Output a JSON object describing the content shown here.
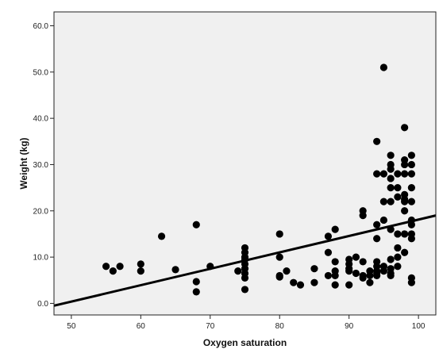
{
  "chart_data": {
    "type": "scatter",
    "title": "",
    "xlabel": "Oxygen saturation",
    "ylabel": "Weight (kg)",
    "xlim": [
      47.5,
      102.5
    ],
    "ylim": [
      -2.5,
      63
    ],
    "x_ticks": [
      50,
      60,
      70,
      80,
      90,
      100
    ],
    "y_ticks": [
      0.0,
      10.0,
      20.0,
      30.0,
      40.0,
      50.0,
      60.0
    ],
    "x_tick_labels": [
      "50",
      "60",
      "70",
      "80",
      "90",
      "100"
    ],
    "y_tick_labels": [
      "0.0",
      "10.0",
      "20.0",
      "30.0",
      "40.0",
      "50.0",
      "60.0"
    ],
    "grid": false,
    "legend": "none",
    "plot_background": "#f0f0f0",
    "point_color": "#000000",
    "points": [
      [
        55,
        8.0
      ],
      [
        56,
        7.0
      ],
      [
        57,
        8.0
      ],
      [
        60,
        8.5
      ],
      [
        60,
        7.0
      ],
      [
        63,
        14.5
      ],
      [
        65,
        7.3
      ],
      [
        68,
        17.0
      ],
      [
        68,
        4.7
      ],
      [
        68,
        2.5
      ],
      [
        70,
        8.0
      ],
      [
        74,
        7.0
      ],
      [
        75,
        12.0
      ],
      [
        75,
        11.0
      ],
      [
        75,
        10.0
      ],
      [
        75,
        9.5
      ],
      [
        75,
        8.5
      ],
      [
        75,
        7.5
      ],
      [
        75,
        6.5
      ],
      [
        75,
        5.5
      ],
      [
        75,
        3.0
      ],
      [
        80,
        15.0
      ],
      [
        80,
        10.0
      ],
      [
        80,
        6.0
      ],
      [
        80,
        5.7
      ],
      [
        81,
        7.0
      ],
      [
        82,
        4.5
      ],
      [
        83,
        4.0
      ],
      [
        85,
        7.5
      ],
      [
        85,
        4.5
      ],
      [
        87,
        14.5
      ],
      [
        87,
        11.0
      ],
      [
        87,
        6.0
      ],
      [
        88,
        16.0
      ],
      [
        88,
        9.0
      ],
      [
        88,
        7.0
      ],
      [
        88,
        6.0
      ],
      [
        88,
        4.0
      ],
      [
        90,
        9.5
      ],
      [
        90,
        8.5
      ],
      [
        90,
        7.5
      ],
      [
        90,
        7.0
      ],
      [
        90,
        4.0
      ],
      [
        91,
        10.0
      ],
      [
        91,
        6.5
      ],
      [
        92,
        20.0
      ],
      [
        92,
        19.0
      ],
      [
        92,
        9.0
      ],
      [
        92,
        6.0
      ],
      [
        92,
        5.5
      ],
      [
        93,
        7.0
      ],
      [
        93,
        6.0
      ],
      [
        93,
        4.5
      ],
      [
        94,
        35.0
      ],
      [
        94,
        28.0
      ],
      [
        94,
        17.0
      ],
      [
        94,
        14.0
      ],
      [
        94,
        9.0
      ],
      [
        94,
        8.0
      ],
      [
        94,
        7.0
      ],
      [
        94,
        6.5
      ],
      [
        94,
        6.0
      ],
      [
        95,
        51.0
      ],
      [
        95,
        28.0
      ],
      [
        95,
        22.0
      ],
      [
        95,
        18.0
      ],
      [
        95,
        8.0
      ],
      [
        95,
        7.0
      ],
      [
        96,
        32.0
      ],
      [
        96,
        30.0
      ],
      [
        96,
        29.0
      ],
      [
        96,
        27.0
      ],
      [
        96,
        25.0
      ],
      [
        96,
        22.0
      ],
      [
        96,
        16.0
      ],
      [
        96,
        9.5
      ],
      [
        96,
        7.5
      ],
      [
        96,
        6.5
      ],
      [
        96,
        6.0
      ],
      [
        97,
        28.0
      ],
      [
        97,
        25.0
      ],
      [
        97,
        23.0
      ],
      [
        97,
        15.0
      ],
      [
        97,
        12.0
      ],
      [
        97,
        10.0
      ],
      [
        97,
        8.0
      ],
      [
        98,
        38.0
      ],
      [
        98,
        31.0
      ],
      [
        98,
        30.0
      ],
      [
        98,
        28.0
      ],
      [
        98,
        23.5
      ],
      [
        98,
        22.5
      ],
      [
        98,
        22.0
      ],
      [
        98,
        20.0
      ],
      [
        98,
        15.0
      ],
      [
        98,
        11.0
      ],
      [
        99,
        32.0
      ],
      [
        99,
        30.0
      ],
      [
        99,
        28.0
      ],
      [
        99,
        25.0
      ],
      [
        99,
        22.0
      ],
      [
        99,
        18.0
      ],
      [
        99,
        17.0
      ],
      [
        99,
        15.0
      ],
      [
        99,
        14.0
      ],
      [
        99,
        5.5
      ],
      [
        99,
        4.5
      ]
    ],
    "fit_line": {
      "x": [
        47.5,
        102.5
      ],
      "y": [
        -0.5,
        19.0
      ]
    }
  }
}
